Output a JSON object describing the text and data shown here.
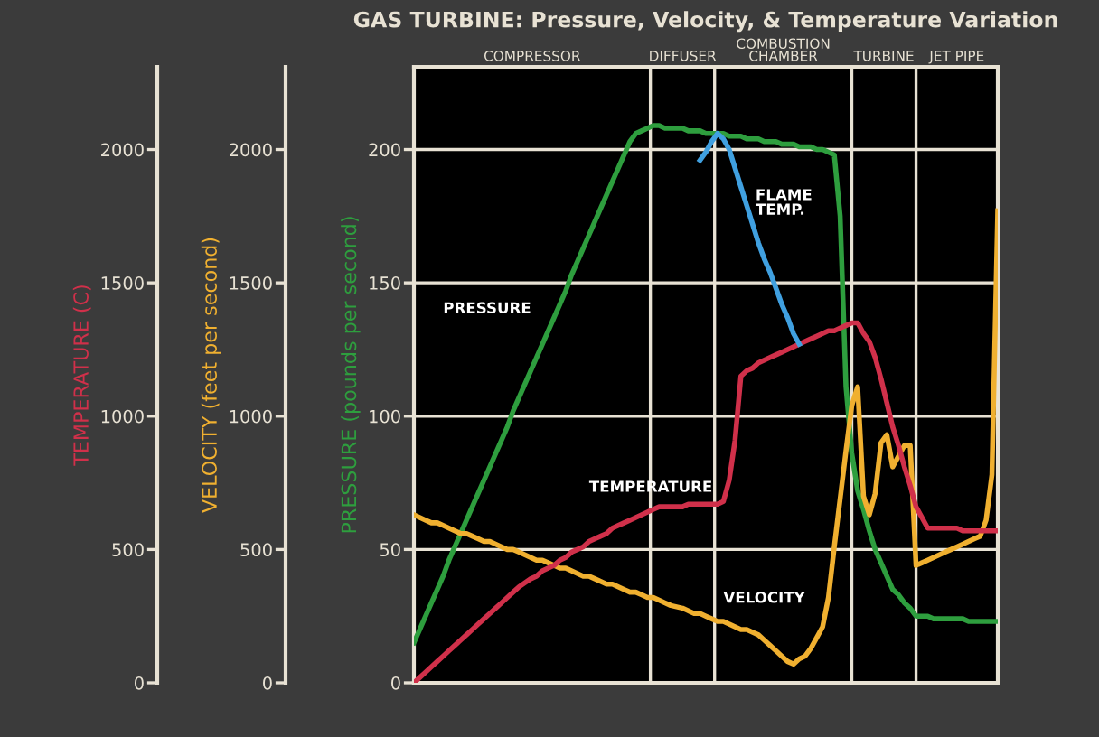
{
  "chart_data": {
    "type": "line",
    "title": "GAS TURBINE: Pressure, Velocity, & Temperature Variation",
    "ylabel": "PRESSURE (pounds per second)",
    "y2label": "VELOCITY (feet per second)",
    "y3label": "TEMPERATURE (C)",
    "categories": [
      null,
      null,
      null,
      null,
      null,
      null,
      null,
      null,
      null,
      null,
      null,
      null,
      null,
      null,
      null,
      null,
      null,
      null,
      null,
      null,
      null,
      null,
      null,
      null,
      null,
      null,
      null,
      null,
      null,
      null,
      null,
      null,
      null,
      null,
      null,
      null,
      null,
      null,
      null,
      null,
      null,
      null,
      null,
      null,
      null,
      null,
      null,
      null,
      null,
      null,
      null,
      null,
      null,
      null,
      null,
      null,
      null,
      null,
      null,
      null,
      null,
      null,
      null,
      null,
      null,
      null,
      null,
      null,
      null,
      null,
      null,
      null,
      null,
      null,
      null,
      null,
      null,
      null,
      null,
      null,
      null,
      null,
      null,
      null,
      null,
      null,
      null,
      null,
      null,
      null,
      null,
      null,
      null,
      null,
      null,
      null,
      null,
      null,
      null,
      null,
      null
    ],
    "ylim": [
      0,
      231
    ],
    "yticks": [
      0,
      50,
      100,
      150,
      200
    ],
    "y2lim": [
      0,
      2310
    ],
    "y2ticks": [
      0,
      500,
      1000,
      1500,
      2000
    ],
    "y3lim": [
      0,
      2310
    ],
    "y3ticks": [
      0,
      500,
      1000,
      1500,
      2000
    ],
    "tick_labels": "y",
    "grid": true,
    "legend": false,
    "annotations": [
      "COMPRESSOR",
      "DIFFUSER",
      "COMBUSTION CHAMBER",
      "TURBINE",
      "JET PIPE"
    ],
    "series": [
      {
        "name": "PRESSURE",
        "color": "#2e9e3e",
        "axis": "y",
        "values": [
          15,
          20,
          25,
          30,
          35,
          40,
          46,
          51,
          56,
          61,
          66,
          71,
          76,
          81,
          86,
          91,
          96,
          102,
          107,
          112,
          117,
          122,
          127,
          132,
          137,
          142,
          147,
          153,
          158,
          163,
          168,
          173,
          178,
          183,
          188,
          193,
          198,
          203,
          206,
          207,
          208,
          209,
          209,
          208,
          208,
          208,
          208,
          207,
          207,
          207,
          206,
          206,
          206,
          206,
          205,
          205,
          205,
          204,
          204,
          204,
          203,
          203,
          203,
          202,
          202,
          202,
          201,
          201,
          201,
          200,
          200,
          199,
          198,
          175,
          111,
          86,
          72,
          65,
          57,
          50,
          45,
          40,
          35,
          33,
          30,
          28,
          25,
          25,
          25,
          24,
          24,
          24,
          24,
          24,
          24,
          23,
          23,
          23,
          23,
          23,
          23
        ]
      },
      {
        "name": "TEMPERATURE",
        "color": "#d0304a",
        "axis": "y3",
        "values": [
          0,
          20,
          40,
          60,
          80,
          100,
          120,
          140,
          160,
          180,
          200,
          220,
          240,
          260,
          280,
          300,
          320,
          340,
          360,
          375,
          390,
          400,
          420,
          430,
          440,
          460,
          470,
          490,
          500,
          510,
          530,
          540,
          550,
          560,
          580,
          590,
          600,
          610,
          620,
          630,
          640,
          650,
          660,
          660,
          660,
          660,
          660,
          670,
          670,
          670,
          670,
          670,
          670,
          680,
          760,
          910,
          1150,
          1170,
          1180,
          1200,
          1210,
          1220,
          1230,
          1240,
          1250,
          1260,
          1270,
          1280,
          1290,
          1300,
          1310,
          1320,
          1320,
          1330,
          1340,
          1350,
          1350,
          1310,
          1280,
          1220,
          1140,
          1050,
          960,
          890,
          810,
          740,
          660,
          620,
          580,
          580,
          580,
          580,
          580,
          580,
          570,
          570,
          570,
          570,
          570,
          570,
          570
        ]
      },
      {
        "name": "VELOCITY",
        "color": "#f0b030",
        "axis": "y2",
        "values": [
          630,
          620,
          610,
          600,
          600,
          590,
          580,
          570,
          560,
          560,
          550,
          540,
          530,
          530,
          520,
          510,
          500,
          500,
          490,
          480,
          470,
          460,
          460,
          450,
          440,
          430,
          430,
          420,
          410,
          400,
          400,
          390,
          380,
          370,
          370,
          360,
          350,
          340,
          340,
          330,
          320,
          320,
          310,
          300,
          290,
          285,
          280,
          270,
          260,
          260,
          250,
          240,
          230,
          230,
          220,
          210,
          200,
          200,
          190,
          180,
          160,
          140,
          120,
          100,
          80,
          70,
          90,
          100,
          130,
          170,
          210,
          320,
          510,
          690,
          870,
          1040,
          1110,
          700,
          630,
          710,
          900,
          930,
          810,
          850,
          890,
          890,
          440,
          450,
          460,
          470,
          480,
          490,
          500,
          510,
          520,
          530,
          540,
          550,
          610,
          780,
          1770
        ]
      },
      {
        "name": "FLAME TEMP.",
        "color": "#40a0e0",
        "axis": "y3",
        "values": [
          null,
          null,
          null,
          null,
          null,
          null,
          null,
          null,
          null,
          null,
          null,
          null,
          null,
          null,
          null,
          null,
          null,
          null,
          null,
          null,
          null,
          null,
          null,
          null,
          null,
          null,
          null,
          null,
          null,
          null,
          null,
          null,
          null,
          null,
          null,
          null,
          null,
          null,
          null,
          null,
          null,
          null,
          null,
          null,
          null,
          null,
          null,
          null,
          null,
          1960,
          1990,
          2030,
          2060,
          2040,
          2000,
          1930,
          1860,
          1790,
          1720,
          1650,
          1590,
          1540,
          1480,
          1420,
          1370,
          1310,
          1270,
          null,
          null,
          null,
          null,
          null,
          null,
          null,
          null,
          null,
          null,
          null,
          null,
          null,
          null,
          null,
          null,
          null,
          null,
          null,
          null,
          null,
          null,
          null,
          null,
          null,
          null,
          null,
          null,
          null,
          null,
          null,
          null,
          null,
          null
        ]
      }
    ]
  }
}
